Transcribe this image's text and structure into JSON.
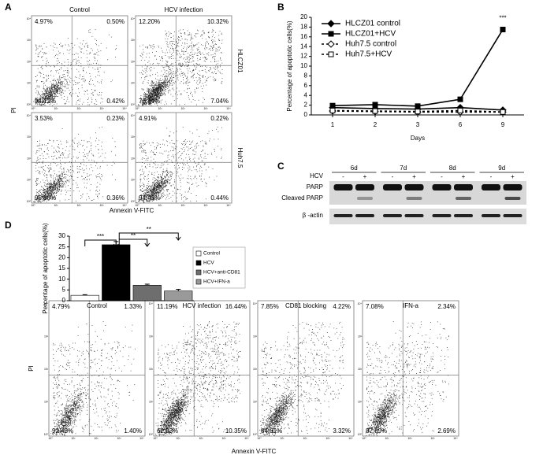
{
  "panel_letters": [
    "A",
    "B",
    "C",
    "D"
  ],
  "flow_a": {
    "columns": [
      "Control",
      "HCV infection"
    ],
    "rows": [
      "HLCZ01",
      "Huh7.5"
    ],
    "y_label": "PI",
    "x_label": "Annexin V-FITC",
    "quadrants": [
      [
        [
          "4.97%",
          "0.50%",
          "94.12%",
          "0.42%"
        ],
        [
          "12.20%",
          "10.32%",
          "76.44%",
          "7.04%"
        ]
      ],
      [
        [
          "3.53%",
          "0.23%",
          "95.88%",
          "0.36%"
        ],
        [
          "4.91%",
          "0.22%",
          "94.43%",
          "0.44%"
        ]
      ]
    ]
  },
  "flow_d": {
    "titles": [
      "Control",
      "HCV infection",
      "CD81 blocking",
      "IFN-a"
    ],
    "y_label": "PI",
    "x_label": "Annexin V-FITC",
    "quadrants": [
      [
        "4.79%",
        "1.33%",
        "92.48%",
        "1.40%"
      ],
      [
        "11.19%",
        "16.44%",
        "62.03%",
        "10.35%"
      ],
      [
        "7.85%",
        "4.22%",
        "84.61%",
        "3.32%"
      ],
      [
        "7.08%",
        "2.34%",
        "87.89%",
        "2.69%"
      ]
    ]
  },
  "flow_ticks": [
    "10⁰",
    "10¹",
    "10²",
    "10³",
    "10⁴"
  ],
  "blot": {
    "days": [
      "6d",
      "7d",
      "8d",
      "9d"
    ],
    "treatment_label": "HCV",
    "treatment_signs": [
      "-",
      "+"
    ],
    "rows": [
      "PARP",
      "Cleaved PARP",
      "β -actin"
    ]
  },
  "chart_data": [
    {
      "type": "line",
      "x_label": "Days",
      "y_label": "Percentage of apoptotic cells(%)",
      "categories": [
        "1",
        "2",
        "3",
        "6",
        "9"
      ],
      "ylim": [
        0,
        20
      ],
      "yticks": [
        0,
        2,
        4,
        6,
        8,
        10,
        12,
        14,
        16,
        18,
        20
      ],
      "annotation": "***",
      "series": [
        {
          "name": "HLCZ01 control",
          "color": "#000",
          "marker": "diamond",
          "dashed": false,
          "values": [
            1.5,
            1.3,
            1.2,
            1.5,
            1.0
          ]
        },
        {
          "name": "HLCZ01+HCV",
          "color": "#000",
          "marker": "square",
          "dashed": false,
          "values": [
            1.9,
            2.1,
            1.8,
            3.2,
            17.5
          ]
        },
        {
          "name": "Huh7.5 control",
          "color": "#000",
          "marker": "diamond-open",
          "dashed": true,
          "values": [
            0.8,
            0.7,
            0.6,
            0.6,
            0.6
          ]
        },
        {
          "name": "Huh7.5+HCV",
          "color": "#000",
          "marker": "square-open",
          "dashed": true,
          "values": [
            0.9,
            0.8,
            0.7,
            0.9,
            0.6
          ]
        }
      ]
    },
    {
      "type": "bar",
      "y_label": "Percentage of apoptotic cells(%)",
      "categories": [
        "Control",
        "HCV",
        "HCV+anti-CD81",
        "HCV+IFN-a"
      ],
      "values": [
        2.5,
        26,
        7.2,
        4.5
      ],
      "errors": [
        0.3,
        1.5,
        0.5,
        0.8
      ],
      "colors": [
        "#ffffff",
        "#000000",
        "#6e6e6e",
        "#9a9a9a"
      ],
      "ylim": [
        0,
        30
      ],
      "yticks": [
        0,
        5,
        10,
        15,
        20,
        25,
        30
      ],
      "significance": [
        "***",
        "**",
        "**"
      ]
    }
  ]
}
